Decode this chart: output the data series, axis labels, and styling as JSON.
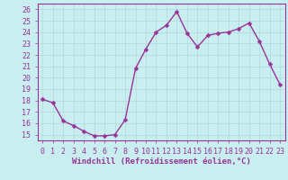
{
  "x": [
    0,
    1,
    2,
    3,
    4,
    5,
    6,
    7,
    8,
    9,
    10,
    11,
    12,
    13,
    14,
    15,
    16,
    17,
    18,
    19,
    20,
    21,
    22,
    23
  ],
  "y": [
    18.1,
    17.8,
    16.2,
    15.8,
    15.3,
    14.9,
    14.9,
    15.0,
    16.3,
    20.8,
    22.5,
    24.0,
    24.6,
    25.8,
    23.9,
    22.7,
    23.7,
    23.9,
    24.0,
    24.3,
    24.8,
    23.2,
    21.2,
    19.4
  ],
  "line_color": "#993399",
  "marker_color": "#993399",
  "bg_color": "#c8eef0",
  "grid_color": "#b0d8da",
  "xlabel": "Windchill (Refroidissement éolien,°C)",
  "ylabel": "",
  "xlim": [
    -0.5,
    23.5
  ],
  "ylim": [
    14.5,
    26.5
  ],
  "yticks": [
    15,
    16,
    17,
    18,
    19,
    20,
    21,
    22,
    23,
    24,
    25,
    26
  ],
  "xticks": [
    0,
    1,
    2,
    3,
    4,
    5,
    6,
    7,
    8,
    9,
    10,
    11,
    12,
    13,
    14,
    15,
    16,
    17,
    18,
    19,
    20,
    21,
    22,
    23
  ],
  "tick_color": "#993399",
  "axis_color": "#993399",
  "font_size_xlabel": 6.5,
  "font_size_ticks": 6.0,
  "line_width": 1.0,
  "marker_size": 2.5
}
